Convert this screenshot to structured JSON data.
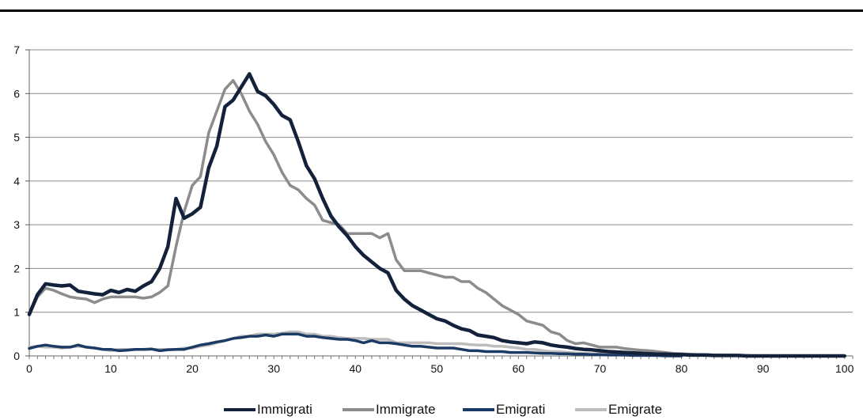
{
  "chart_data": {
    "type": "line",
    "title": "",
    "xlabel": "",
    "ylabel": "",
    "xlim": [
      0,
      101
    ],
    "ylim": [
      0,
      7
    ],
    "xticks": [
      "0",
      "10",
      "20",
      "30",
      "40",
      "50",
      "60",
      "70",
      "80",
      "90",
      "100"
    ],
    "yticks": [
      "0",
      "1",
      "2",
      "3",
      "4",
      "5",
      "6",
      "7"
    ],
    "grid": "horizontal",
    "legend_position": "bottom",
    "series": [
      {
        "name": "Immigrati",
        "color": "#13213b",
        "x": [
          0,
          1,
          2,
          3,
          4,
          5,
          6,
          7,
          8,
          9,
          10,
          11,
          12,
          13,
          14,
          15,
          16,
          17,
          18,
          19,
          20,
          21,
          22,
          23,
          24,
          25,
          26,
          27,
          28,
          29,
          30,
          31,
          32,
          33,
          34,
          35,
          36,
          37,
          38,
          39,
          40,
          41,
          42,
          43,
          44,
          45,
          46,
          47,
          48,
          49,
          50,
          51,
          52,
          53,
          54,
          55,
          56,
          57,
          58,
          59,
          60,
          61,
          62,
          63,
          64,
          65,
          66,
          67,
          68,
          69,
          70,
          71,
          72,
          73,
          74,
          75,
          76,
          77,
          78,
          79,
          80,
          81,
          82,
          83,
          84,
          85,
          86,
          87,
          88,
          89,
          90,
          91,
          92,
          93,
          94,
          95,
          96,
          97,
          98,
          99,
          100
        ],
        "y": [
          0.95,
          1.4,
          1.65,
          1.62,
          1.6,
          1.62,
          1.48,
          1.45,
          1.42,
          1.4,
          1.5,
          1.45,
          1.52,
          1.48,
          1.6,
          1.7,
          2.0,
          2.5,
          3.6,
          3.15,
          3.25,
          3.4,
          4.3,
          4.8,
          5.7,
          5.85,
          6.15,
          6.45,
          6.05,
          5.95,
          5.75,
          5.5,
          5.4,
          4.9,
          4.35,
          4.05,
          3.6,
          3.2,
          2.95,
          2.75,
          2.5,
          2.3,
          2.15,
          2.0,
          1.9,
          1.5,
          1.3,
          1.15,
          1.05,
          0.95,
          0.85,
          0.8,
          0.7,
          0.62,
          0.58,
          0.48,
          0.45,
          0.42,
          0.35,
          0.32,
          0.3,
          0.28,
          0.32,
          0.3,
          0.25,
          0.22,
          0.2,
          0.17,
          0.15,
          0.14,
          0.12,
          0.1,
          0.09,
          0.08,
          0.07,
          0.06,
          0.05,
          0.04,
          0.04,
          0.03,
          0.03,
          0.02,
          0.02,
          0.02,
          0.01,
          0.01,
          0.01,
          0.01,
          0,
          0,
          0,
          0,
          0,
          0,
          0,
          0,
          0,
          0,
          0,
          0,
          0
        ]
      },
      {
        "name": "Immigrate",
        "color": "#8c8c8c",
        "x": [
          0,
          1,
          2,
          3,
          4,
          5,
          6,
          7,
          8,
          9,
          10,
          11,
          12,
          13,
          14,
          15,
          16,
          17,
          18,
          19,
          20,
          21,
          22,
          23,
          24,
          25,
          26,
          27,
          28,
          29,
          30,
          31,
          32,
          33,
          34,
          35,
          36,
          37,
          38,
          39,
          40,
          41,
          42,
          43,
          44,
          45,
          46,
          47,
          48,
          49,
          50,
          51,
          52,
          53,
          54,
          55,
          56,
          57,
          58,
          59,
          60,
          61,
          62,
          63,
          64,
          65,
          66,
          67,
          68,
          69,
          70,
          71,
          72,
          73,
          74,
          75,
          76,
          77,
          78,
          79,
          80,
          81,
          82,
          83,
          84,
          85,
          86,
          87,
          88,
          89,
          90,
          91,
          92,
          93,
          94,
          95,
          96,
          97,
          98,
          99,
          100
        ],
        "y": [
          0.95,
          1.35,
          1.55,
          1.5,
          1.42,
          1.35,
          1.32,
          1.3,
          1.22,
          1.3,
          1.35,
          1.35,
          1.35,
          1.35,
          1.32,
          1.35,
          1.45,
          1.6,
          2.5,
          3.3,
          3.9,
          4.1,
          5.1,
          5.6,
          6.1,
          6.3,
          6.0,
          5.6,
          5.3,
          4.9,
          4.6,
          4.2,
          3.9,
          3.8,
          3.6,
          3.45,
          3.1,
          3.05,
          3.0,
          2.8,
          2.8,
          2.8,
          2.8,
          2.7,
          2.8,
          2.2,
          1.95,
          1.95,
          1.95,
          1.9,
          1.85,
          1.8,
          1.8,
          1.7,
          1.7,
          1.55,
          1.45,
          1.3,
          1.15,
          1.05,
          0.95,
          0.8,
          0.75,
          0.7,
          0.55,
          0.5,
          0.35,
          0.28,
          0.3,
          0.25,
          0.2,
          0.2,
          0.2,
          0.17,
          0.15,
          0.13,
          0.12,
          0.1,
          0.08,
          0.06,
          0.05,
          0.04,
          0.03,
          0.03,
          0.02,
          0.02,
          0.01,
          0.01,
          0.01,
          0,
          0,
          0,
          0,
          0,
          0,
          0,
          0,
          0,
          0,
          0,
          0
        ]
      },
      {
        "name": "Emigrati",
        "color": "#1c3b64",
        "x": [
          0,
          1,
          2,
          3,
          4,
          5,
          6,
          7,
          8,
          9,
          10,
          11,
          12,
          13,
          14,
          15,
          16,
          17,
          18,
          19,
          20,
          21,
          22,
          23,
          24,
          25,
          26,
          27,
          28,
          29,
          30,
          31,
          32,
          33,
          34,
          35,
          36,
          37,
          38,
          39,
          40,
          41,
          42,
          43,
          44,
          45,
          46,
          47,
          48,
          49,
          50,
          51,
          52,
          53,
          54,
          55,
          56,
          57,
          58,
          59,
          60,
          61,
          62,
          63,
          64,
          65,
          66,
          67,
          68,
          69,
          70,
          71,
          72,
          73,
          74,
          75,
          76,
          77,
          78,
          79,
          80
        ],
        "y": [
          0.17,
          0.22,
          0.25,
          0.22,
          0.2,
          0.2,
          0.25,
          0.2,
          0.18,
          0.15,
          0.15,
          0.12,
          0.13,
          0.15,
          0.15,
          0.16,
          0.12,
          0.14,
          0.15,
          0.15,
          0.2,
          0.25,
          0.28,
          0.32,
          0.35,
          0.4,
          0.42,
          0.45,
          0.45,
          0.48,
          0.45,
          0.5,
          0.5,
          0.5,
          0.45,
          0.45,
          0.42,
          0.4,
          0.38,
          0.38,
          0.35,
          0.3,
          0.35,
          0.3,
          0.3,
          0.28,
          0.25,
          0.22,
          0.22,
          0.2,
          0.18,
          0.18,
          0.18,
          0.15,
          0.12,
          0.12,
          0.1,
          0.1,
          0.1,
          0.08,
          0.08,
          0.08,
          0.07,
          0.06,
          0.06,
          0.05,
          0.05,
          0.04,
          0.04,
          0.03,
          0.03,
          0.02,
          0.02,
          0.02,
          0.01,
          0.01,
          0.01,
          0.01,
          0,
          0,
          0
        ]
      },
      {
        "name": "Emigrate",
        "color": "#bdbdbd",
        "x": [
          0,
          1,
          2,
          3,
          4,
          5,
          6,
          7,
          8,
          9,
          10,
          11,
          12,
          13,
          14,
          15,
          16,
          17,
          18,
          19,
          20,
          21,
          22,
          23,
          24,
          25,
          26,
          27,
          28,
          29,
          30,
          31,
          32,
          33,
          34,
          35,
          36,
          37,
          38,
          39,
          40,
          41,
          42,
          43,
          44,
          45,
          46,
          47,
          48,
          49,
          50,
          51,
          52,
          53,
          54,
          55,
          56,
          57,
          58,
          59,
          60,
          61,
          62,
          63,
          64,
          65,
          66,
          67,
          68,
          69,
          70,
          71,
          72,
          73,
          74,
          75,
          76,
          77,
          78,
          79,
          80
        ],
        "y": [
          0.2,
          0.22,
          0.2,
          0.2,
          0.18,
          0.2,
          0.22,
          0.2,
          0.18,
          0.15,
          0.12,
          0.15,
          0.15,
          0.15,
          0.15,
          0.15,
          0.15,
          0.15,
          0.15,
          0.18,
          0.18,
          0.22,
          0.25,
          0.3,
          0.35,
          0.4,
          0.45,
          0.45,
          0.5,
          0.5,
          0.5,
          0.52,
          0.55,
          0.55,
          0.5,
          0.5,
          0.45,
          0.45,
          0.42,
          0.4,
          0.4,
          0.4,
          0.38,
          0.38,
          0.38,
          0.3,
          0.3,
          0.3,
          0.3,
          0.3,
          0.28,
          0.28,
          0.28,
          0.28,
          0.26,
          0.25,
          0.25,
          0.22,
          0.22,
          0.2,
          0.18,
          0.15,
          0.15,
          0.12,
          0.1,
          0.1,
          0.08,
          0.07,
          0.06,
          0.05,
          0.05,
          0.04,
          0.03,
          0.03,
          0.02,
          0.02,
          0.01,
          0.01,
          0.01,
          0,
          0
        ]
      }
    ]
  }
}
